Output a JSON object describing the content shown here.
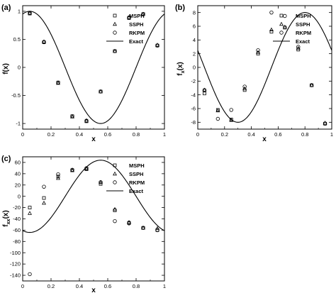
{
  "chart_data": [
    {
      "type": "scatter",
      "panel_label": "(a)",
      "xlabel": "x",
      "ylabel": "f(x)",
      "xlim": [
        0,
        1
      ],
      "ylim": [
        -1.1,
        1.1
      ],
      "x_ticks": [
        "0",
        "0.2",
        "0.4",
        "0.6",
        "0.8",
        "1"
      ],
      "x_tick_values": [
        0,
        0.2,
        0.4,
        0.6,
        0.8,
        1
      ],
      "y_ticks": [
        "1",
        "0.5",
        "0",
        "-0.5",
        "-1"
      ],
      "y_tick_values": [
        1,
        0.5,
        0,
        -0.5,
        -1
      ],
      "legend_position": "top-right",
      "series": [
        {
          "name": "MSPH",
          "marker": "square",
          "x": [
            0.05,
            0.15,
            0.25,
            0.35,
            0.45,
            0.55,
            0.65,
            0.75,
            0.85,
            0.95
          ],
          "y": [
            0.96,
            0.45,
            -0.27,
            -0.87,
            -0.96,
            -0.43,
            0.29,
            0.88,
            0.95,
            0.39
          ]
        },
        {
          "name": "SSPH",
          "marker": "triangle",
          "x": [
            0.05,
            0.15,
            0.25,
            0.35,
            0.45,
            0.55,
            0.65,
            0.75,
            0.85,
            0.95
          ],
          "y": [
            0.97,
            0.46,
            -0.28,
            -0.88,
            -0.95,
            -0.43,
            0.29,
            0.89,
            0.95,
            0.4
          ]
        },
        {
          "name": "RKPM",
          "marker": "circle",
          "x": [
            0.05,
            0.15,
            0.25,
            0.35,
            0.45,
            0.55,
            0.65,
            0.75,
            0.85,
            0.95
          ],
          "y": [
            0.97,
            0.45,
            -0.27,
            -0.87,
            -0.95,
            -0.43,
            0.29,
            0.89,
            0.95,
            0.39
          ]
        },
        {
          "name": "Exact",
          "line": true,
          "function": "sin(2*pi*(x+0.2))"
        }
      ]
    },
    {
      "type": "scatter",
      "panel_label": "(b)",
      "xlabel": "x",
      "ylabel": "f",
      "ylabel_subscript": "x",
      "ylabel_suffix": "(x)",
      "xlim": [
        0,
        1
      ],
      "ylim": [
        -9,
        9
      ],
      "x_ticks": [
        "0",
        "0.2",
        "0.4",
        "0.6",
        "0.8",
        "1"
      ],
      "x_tick_values": [
        0,
        0.2,
        0.4,
        0.6,
        0.8,
        1
      ],
      "y_ticks": [
        "8",
        "6",
        "4",
        "2",
        "0",
        "-2",
        "-4",
        "-6",
        "-8"
      ],
      "y_tick_values": [
        8,
        6,
        4,
        2,
        0,
        -2,
        -4,
        -6,
        -8
      ],
      "legend_position": "top-right",
      "series": [
        {
          "name": "MSPH",
          "marker": "square",
          "x": [
            0.05,
            0.15,
            0.25,
            0.35,
            0.45,
            0.55,
            0.65,
            0.75,
            0.85,
            0.95
          ],
          "y": [
            -3.8,
            -6.2,
            -7.6,
            -3.3,
            2.0,
            5.2,
            5.8,
            2.6,
            -2.6,
            -8.2
          ]
        },
        {
          "name": "SSPH",
          "marker": "triangle",
          "x": [
            0.05,
            0.15,
            0.25,
            0.35,
            0.45,
            0.55,
            0.65,
            0.75,
            0.85,
            0.95
          ],
          "y": [
            -3.3,
            -6.3,
            -7.7,
            -3.1,
            2.2,
            5.5,
            5.9,
            2.8,
            -2.6,
            -8.1
          ]
        },
        {
          "name": "RKPM",
          "marker": "circle",
          "x": [
            0.05,
            0.15,
            0.25,
            0.35,
            0.45,
            0.55,
            0.65,
            0.75,
            0.85,
            0.95
          ],
          "y": [
            -3.3,
            -7.5,
            -6.2,
            -2.8,
            2.5,
            8.0,
            7.5,
            3.0,
            -2.6,
            -8.2
          ]
        },
        {
          "name": "Exact",
          "line": true,
          "function": "8*cos(2*pi*(x+0.2))"
        }
      ]
    },
    {
      "type": "scatter",
      "panel_label": "(c)",
      "xlabel": "x",
      "ylabel": "f",
      "ylabel_subscript": "xx",
      "ylabel_suffix": "(x)",
      "xlim": [
        0,
        1
      ],
      "ylim": [
        -150,
        70
      ],
      "x_ticks": [
        "0",
        "0.2",
        "0.4",
        "0.6",
        "0.8",
        "1"
      ],
      "x_tick_values": [
        0,
        0.2,
        0.4,
        0.6,
        0.8,
        1
      ],
      "y_ticks": [
        "60",
        "40",
        "20",
        "0",
        "-20",
        "-40",
        "-60",
        "-80",
        "-100",
        "-120",
        "-140"
      ],
      "y_tick_values": [
        60,
        40,
        20,
        0,
        -20,
        -40,
        -60,
        -80,
        -100,
        -120,
        -140
      ],
      "legend_position": "top-right",
      "series": [
        {
          "name": "MSPH",
          "marker": "square",
          "x": [
            0.05,
            0.15,
            0.25,
            0.35,
            0.45,
            0.55,
            0.65,
            0.75,
            0.85,
            0.95
          ],
          "y": [
            -20,
            -3,
            35,
            46,
            48,
            22,
            -25,
            -47,
            -56,
            -60
          ]
        },
        {
          "name": "SSPH",
          "marker": "triangle",
          "x": [
            0.05,
            0.15,
            0.25,
            0.35,
            0.45,
            0.55,
            0.65,
            0.75,
            0.85,
            0.95
          ],
          "y": [
            -30,
            -12,
            32,
            46,
            49,
            25,
            -23,
            -46,
            -56,
            -57
          ]
        },
        {
          "name": "RKPM",
          "marker": "circle",
          "x": [
            0.05,
            0.15,
            0.25,
            0.35,
            0.45,
            0.55,
            0.65,
            0.75,
            0.85,
            0.95
          ],
          "y": [
            -138,
            17,
            39,
            47,
            50,
            25,
            -44,
            -48,
            -56,
            -60
          ]
        },
        {
          "name": "Exact",
          "line": true,
          "function": "-64*sin(2*pi*(x+0.2))"
        }
      ]
    }
  ]
}
